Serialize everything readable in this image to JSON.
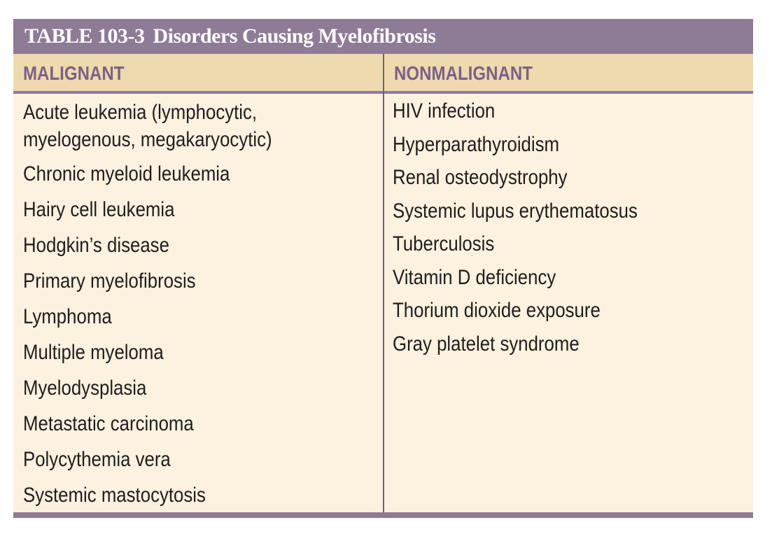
{
  "table": {
    "number": "TABLE 103-3",
    "title": "Disorders Causing Myelofibrosis",
    "columns": {
      "malignant_header": "MALIGNANT",
      "nonmalignant_header": "NONMALIGNANT"
    },
    "malignant": [
      "Acute leukemia (lymphocytic, myelogenous, megakaryocytic)",
      "Chronic myeloid leukemia",
      "Hairy cell leukemia",
      "Hodgkin’s disease",
      "Primary myelofibrosis",
      "Lymphoma",
      "Multiple myeloma",
      "Myelodysplasia",
      "Metastatic carcinoma",
      "Polycythemia vera",
      "Systemic mastocytosis"
    ],
    "nonmalignant": [
      "HIV infection",
      "Hyperparathyroidism",
      "Renal osteodystrophy",
      "Systemic lupus erythematosus",
      "Tuberculosis",
      "Vitamin D deficiency",
      "Thorium dioxide exposure",
      "Gray platelet syndrome"
    ]
  },
  "colors": {
    "title_bar": "#8e7b96",
    "header_band": "#efd9ae",
    "body_background": "#fdf1df",
    "header_text": "#7b6187"
  }
}
